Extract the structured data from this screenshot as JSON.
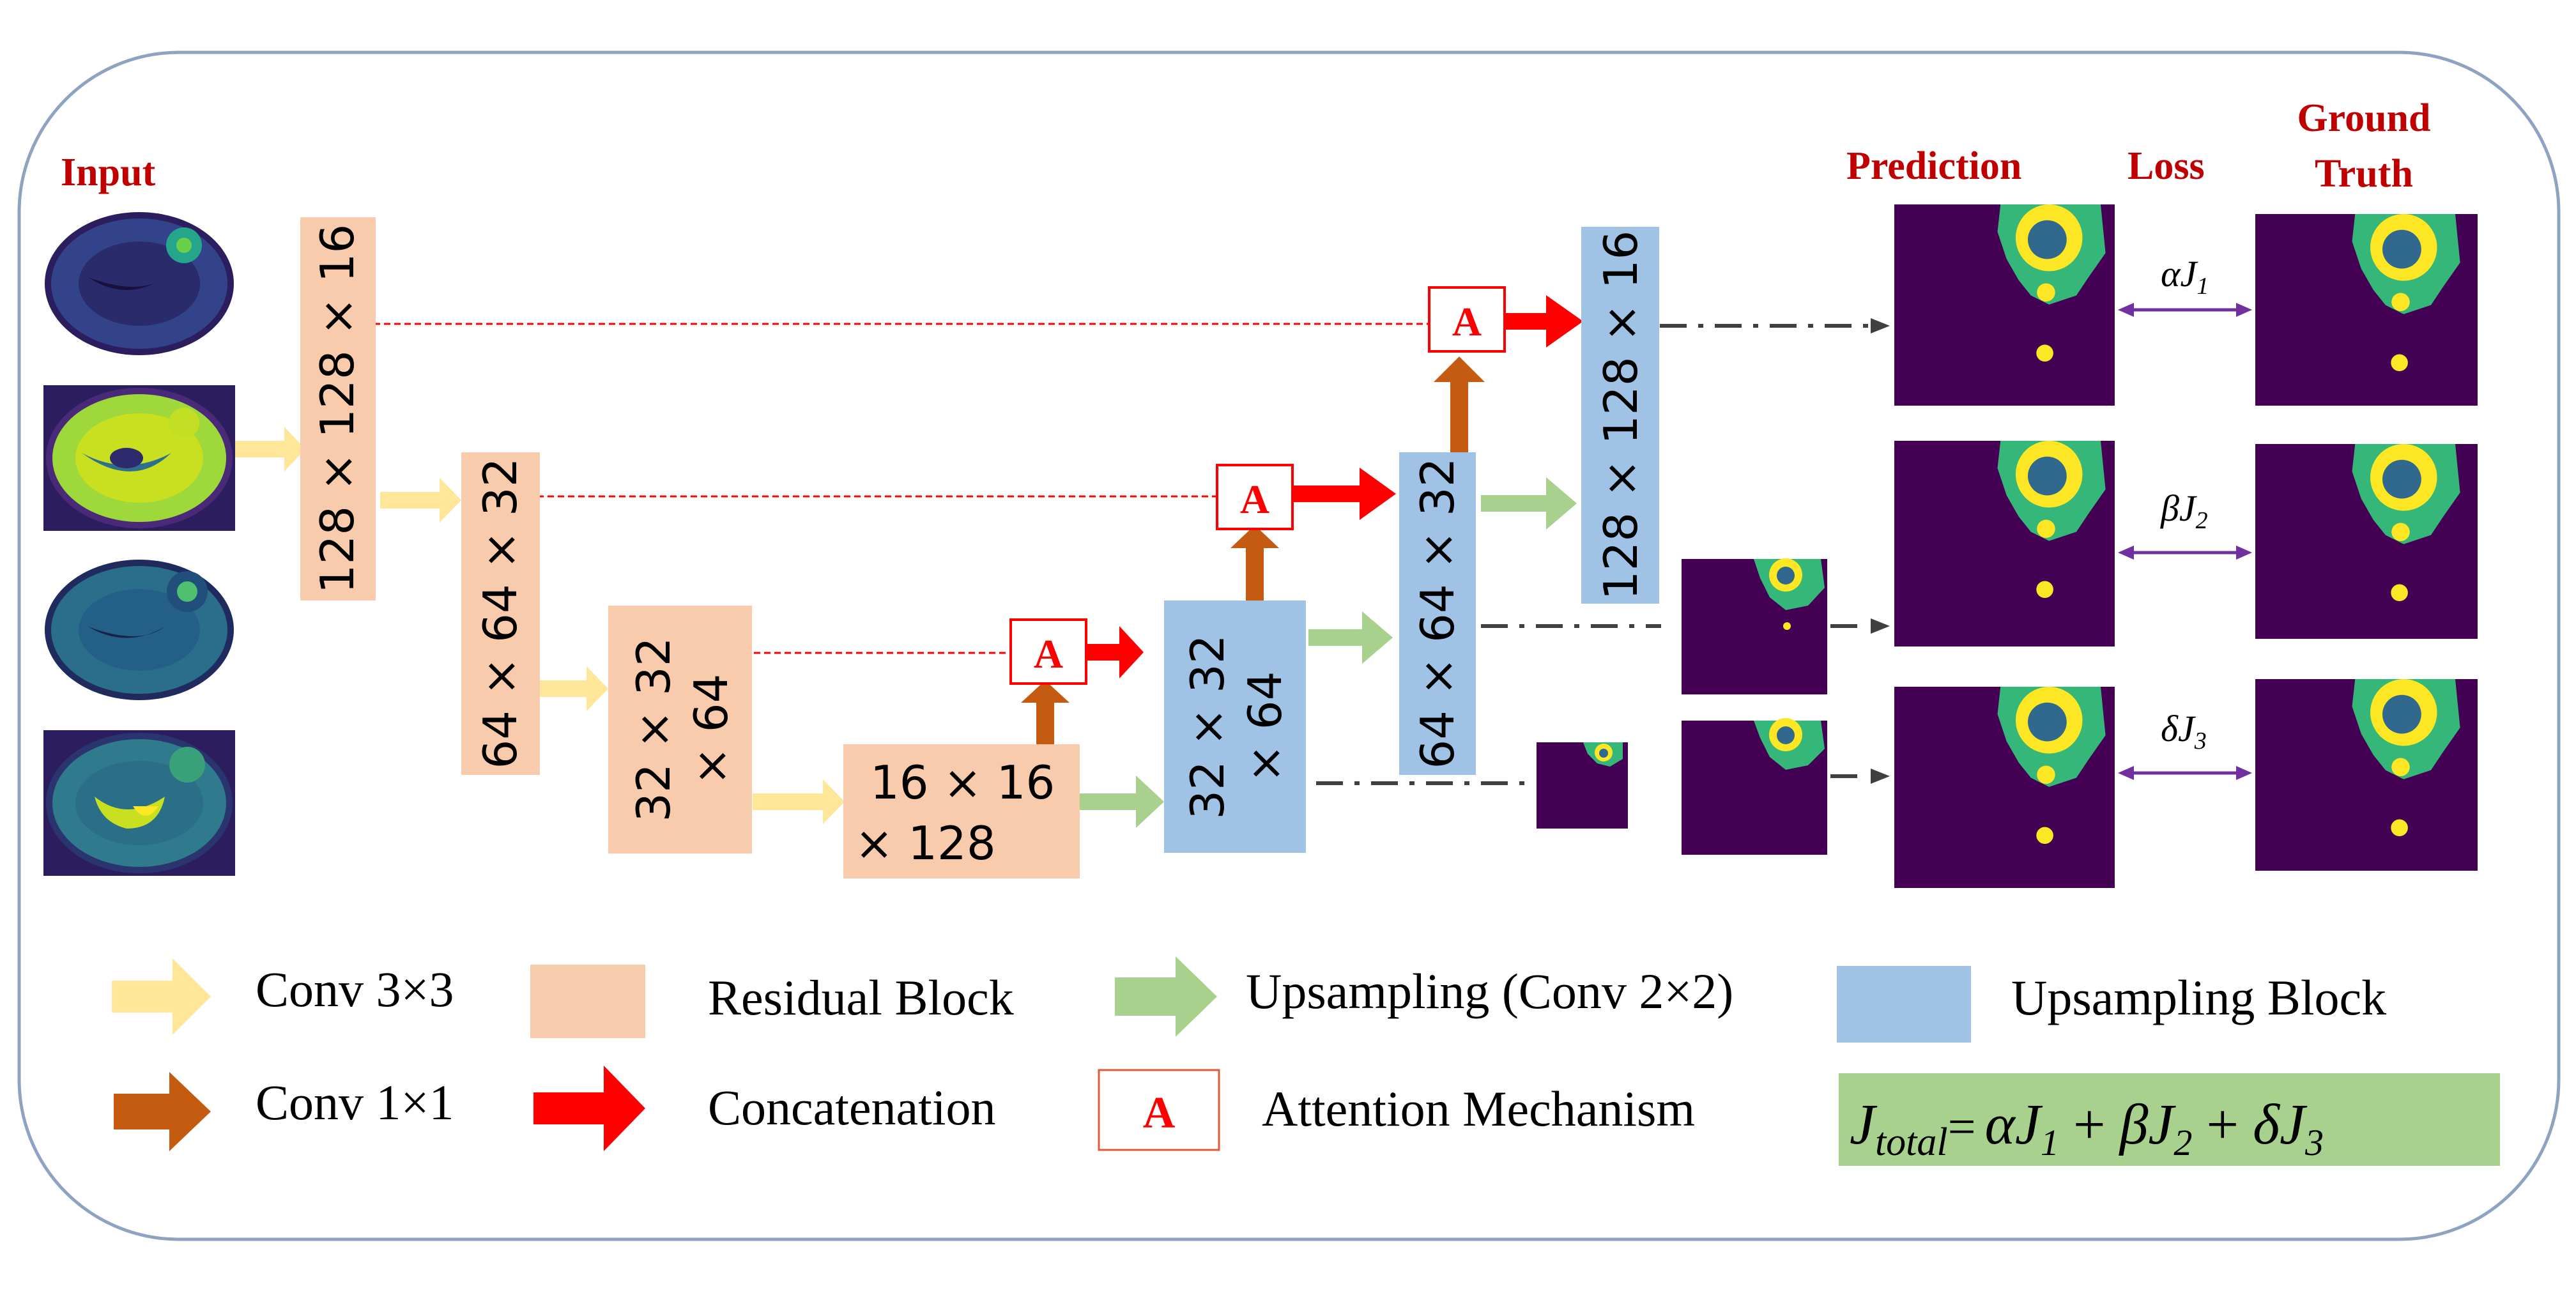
{
  "colors": {
    "residual": "#f7cbab",
    "upsampling_block": "#a0c2e4",
    "conv3_arrow": "#ffe699",
    "conv1_arrow": "#c55a11",
    "upsample_arrow": "#a9d18e",
    "concat_arrow": "#ff0000",
    "attention": "#ff0000",
    "heading": "#c00000",
    "loss_link": "#7030a0",
    "mri_bg": "#440154",
    "seg_green": "#35b779",
    "seg_yellow": "#fde725",
    "seg_blue": "#31688e",
    "formula_bg": "#a9d18e"
  },
  "headings": {
    "input": "Input",
    "prediction": "Prediction",
    "loss": "Loss",
    "ground_truth_1": "Ground",
    "ground_truth_2": "Truth"
  },
  "blocks": {
    "enc1": "128 × 128 × 16",
    "enc2": "64 × 64 × 32",
    "enc3_1": "32 × 32",
    "enc3_2": "× 64",
    "bottleneck_1": "16 × 16",
    "bottleneck_2": "× 128",
    "dec3_1": "32 × 32",
    "dec3_2": "× 64",
    "dec2": "64 × 64 × 32",
    "dec1": "128 × 128 × 16"
  },
  "attention_letter": "A",
  "losses": {
    "alpha": "αJ",
    "alpha_sub": "1",
    "beta": "βJ",
    "beta_sub": "2",
    "delta": "δJ",
    "delta_sub": "3"
  },
  "legend": {
    "conv3": "Conv 3×3",
    "residual": "Residual Block",
    "upsample": "Upsampling (Conv 2×2)",
    "upblock": "Upsampling Block",
    "conv1": "Conv 1×1",
    "concat": "Concatenation",
    "attention_icon": "A",
    "attention": "Attention Mechanism"
  },
  "formula": {
    "j": "J",
    "j_sub": "total",
    "eq": "=",
    "t1": "αJ",
    "t1_sub": "1",
    "plus1": "+",
    "t2": "βJ",
    "t2_sub": "2",
    "plus2": "+",
    "t3": "δJ",
    "t3_sub": "3"
  }
}
